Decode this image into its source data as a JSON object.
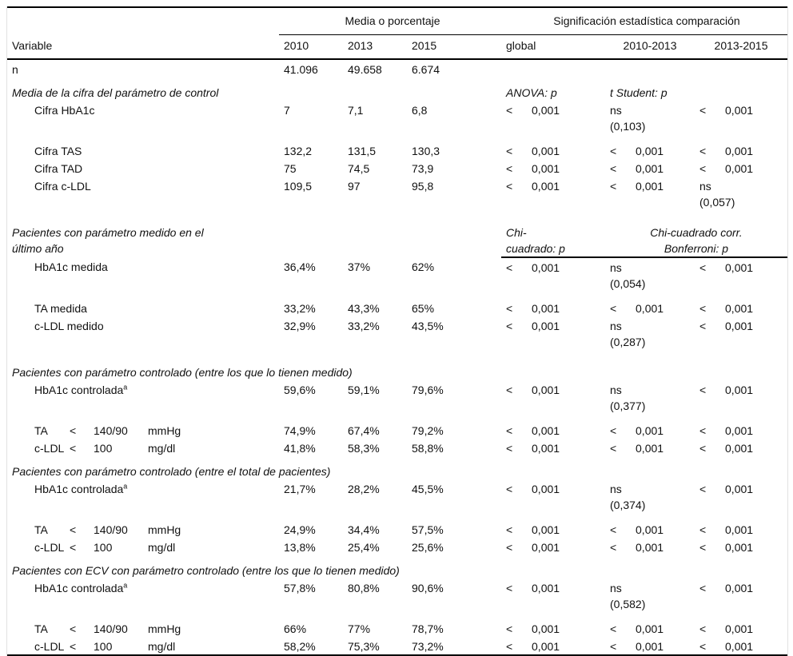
{
  "header": {
    "variable_label": "Variable",
    "groups": [
      {
        "label": "Media o porcentaje"
      },
      {
        "label": "Significación estadística comparación"
      }
    ],
    "year_columns": [
      "2010",
      "2013",
      "2015"
    ],
    "sig_columns": [
      "global",
      "2010-2013",
      "2013-2015"
    ]
  },
  "rows": [
    {
      "type": "data",
      "label": "n",
      "indent": false,
      "values": [
        "41.096",
        "49.658",
        "6.674"
      ],
      "sig": [
        null,
        null,
        null
      ]
    },
    {
      "type": "section",
      "label": "Media de la cifra del parámetro de control",
      "stats": {
        "global": {
          "text": "ANOVA: p"
        },
        "c1": {
          "text": "t Student: p"
        }
      }
    },
    {
      "type": "data",
      "label": "Cifra HbA1c",
      "indent": true,
      "tall": true,
      "values": [
        "7",
        "7,1",
        "6,8"
      ],
      "sig": [
        {
          "cmp": "<",
          "val": "0,001"
        },
        {
          "val": "ns",
          "sub": "(0,103)"
        },
        {
          "cmp": "<",
          "val": "0,001"
        }
      ]
    },
    {
      "type": "data",
      "label": "Cifra TAS",
      "indent": true,
      "values": [
        "132,2",
        "131,5",
        "130,3"
      ],
      "sig": [
        {
          "cmp": "<",
          "val": "0,001"
        },
        {
          "cmp": "<",
          "val": "0,001"
        },
        {
          "cmp": "<",
          "val": "0,001"
        }
      ]
    },
    {
      "type": "data",
      "label": "Cifra TAD",
      "indent": true,
      "values": [
        "75",
        "74,5",
        "73,9"
      ],
      "sig": [
        {
          "cmp": "<",
          "val": "0,001"
        },
        {
          "cmp": "<",
          "val": "0,001"
        },
        {
          "cmp": "<",
          "val": "0,001"
        }
      ]
    },
    {
      "type": "data",
      "label": "Cifra c-LDL",
      "indent": true,
      "tall": true,
      "values": [
        "109,5",
        "97",
        "95,8"
      ],
      "sig": [
        {
          "cmp": "<",
          "val": "0,001"
        },
        {
          "cmp": "<",
          "val": "0,001"
        },
        {
          "val": "ns",
          "sub": "(0,057)"
        }
      ]
    },
    {
      "type": "section",
      "label": "Pacientes con parámetro medido en el último año",
      "narrow": true,
      "rule": true,
      "stats": {
        "global": {
          "text": "Chi-cuadrado: p",
          "wrap": true
        },
        "wide": {
          "text": "Chi-cuadrado corr. Bonferroni: p"
        }
      }
    },
    {
      "type": "data",
      "label": "HbA1c medida",
      "indent": true,
      "tall": true,
      "values": [
        "36,4%",
        "37%",
        "62%"
      ],
      "sig": [
        {
          "cmp": "<",
          "val": "0,001"
        },
        {
          "val": "ns",
          "sub": "(0,054)"
        },
        {
          "cmp": "<",
          "val": "0,001"
        }
      ]
    },
    {
      "type": "data",
      "label": "TA medida",
      "indent": true,
      "values": [
        "33,2%",
        "43,3%",
        "65%"
      ],
      "sig": [
        {
          "cmp": "<",
          "val": "0,001"
        },
        {
          "cmp": "<",
          "val": "0,001"
        },
        {
          "cmp": "<",
          "val": "0,001"
        }
      ]
    },
    {
      "type": "data",
      "label": "c-LDL medido",
      "indent": true,
      "tall": true,
      "values": [
        "32,9%",
        "33,2%",
        "43,5%"
      ],
      "sig": [
        {
          "cmp": "<",
          "val": "0,001"
        },
        {
          "val": "ns",
          "sub": "(0,287)"
        },
        {
          "cmp": "<",
          "val": "0,001"
        }
      ]
    },
    {
      "type": "section",
      "label": "Pacientes con parámetro controlado (entre los que lo tienen medido)"
    },
    {
      "type": "data",
      "label": "HbA1c controlada",
      "sup": "a",
      "indent": true,
      "tall": true,
      "values": [
        "59,6%",
        "59,1%",
        "79,6%"
      ],
      "sig": [
        {
          "cmp": "<",
          "val": "0,001"
        },
        {
          "val": "ns",
          "sub": "(0,377)"
        },
        {
          "cmp": "<",
          "val": "0,001"
        }
      ]
    },
    {
      "type": "data",
      "label_parts": [
        "TA",
        "<",
        "140/90",
        "mmHg"
      ],
      "indent": true,
      "values": [
        "74,9%",
        "67,4%",
        "79,2%"
      ],
      "sig": [
        {
          "cmp": "<",
          "val": "0,001"
        },
        {
          "cmp": "<",
          "val": "0,001"
        },
        {
          "cmp": "<",
          "val": "0,001"
        }
      ]
    },
    {
      "type": "data",
      "label_parts": [
        "c-LDL",
        "<",
        "100",
        "mg/dl"
      ],
      "indent": true,
      "values": [
        "41,8%",
        "58,3%",
        "58,8%"
      ],
      "sig": [
        {
          "cmp": "<",
          "val": "0,001"
        },
        {
          "cmp": "<",
          "val": "0,001"
        },
        {
          "cmp": "<",
          "val": "0,001"
        }
      ]
    },
    {
      "type": "section",
      "label": "Pacientes con parámetro controlado (entre el total de pacientes)"
    },
    {
      "type": "data",
      "label": "HbA1c controlada",
      "sup": "a",
      "indent": true,
      "tall": true,
      "values": [
        "21,7%",
        "28,2%",
        "45,5%"
      ],
      "sig": [
        {
          "cmp": "<",
          "val": "0,001"
        },
        {
          "val": "ns",
          "sub": "(0,374)"
        },
        {
          "cmp": "<",
          "val": "0,001"
        }
      ]
    },
    {
      "type": "data",
      "label_parts": [
        "TA",
        "<",
        "140/90",
        "mmHg"
      ],
      "indent": true,
      "values": [
        "24,9%",
        "34,4%",
        "57,5%"
      ],
      "sig": [
        {
          "cmp": "<",
          "val": "0,001"
        },
        {
          "cmp": "<",
          "val": "0,001"
        },
        {
          "cmp": "<",
          "val": "0,001"
        }
      ]
    },
    {
      "type": "data",
      "label_parts": [
        "c-LDL",
        "<",
        "100",
        "mg/dl"
      ],
      "indent": true,
      "values": [
        "13,8%",
        "25,4%",
        "25,6%"
      ],
      "sig": [
        {
          "cmp": "<",
          "val": "0,001"
        },
        {
          "cmp": "<",
          "val": "0,001"
        },
        {
          "cmp": "<",
          "val": "0,001"
        }
      ]
    },
    {
      "type": "section",
      "label": "Pacientes con ECV con parámetro controlado (entre los que lo tienen medido)"
    },
    {
      "type": "data",
      "label": "HbA1c controlada",
      "sup": "a",
      "indent": true,
      "tall": true,
      "values": [
        "57,8%",
        "80,8%",
        "90,6%"
      ],
      "sig": [
        {
          "cmp": "<",
          "val": "0,001"
        },
        {
          "val": "ns",
          "sub": "(0,582)"
        },
        {
          "cmp": "<",
          "val": "0,001"
        }
      ]
    },
    {
      "type": "data",
      "label_parts": [
        "TA",
        "<",
        "140/90",
        "mmHg"
      ],
      "indent": true,
      "values": [
        "66%",
        "77%",
        "78,7%"
      ],
      "sig": [
        {
          "cmp": "<",
          "val": "0,001"
        },
        {
          "cmp": "<",
          "val": "0,001"
        },
        {
          "cmp": "<",
          "val": "0,001"
        }
      ]
    },
    {
      "type": "data",
      "label_parts": [
        "c-LDL",
        "<",
        "100",
        "mg/dl"
      ],
      "indent": true,
      "values": [
        "58,2%",
        "75,3%",
        "73,2%"
      ],
      "sig": [
        {
          "cmp": "<",
          "val": "0,001"
        },
        {
          "cmp": "<",
          "val": "0,001"
        },
        {
          "cmp": "<",
          "val": "0,001"
        }
      ]
    }
  ],
  "colors": {
    "rule_line": "#000000",
    "frame_line": "#e2e2e2",
    "text": "#111111",
    "background": "#ffffff"
  }
}
